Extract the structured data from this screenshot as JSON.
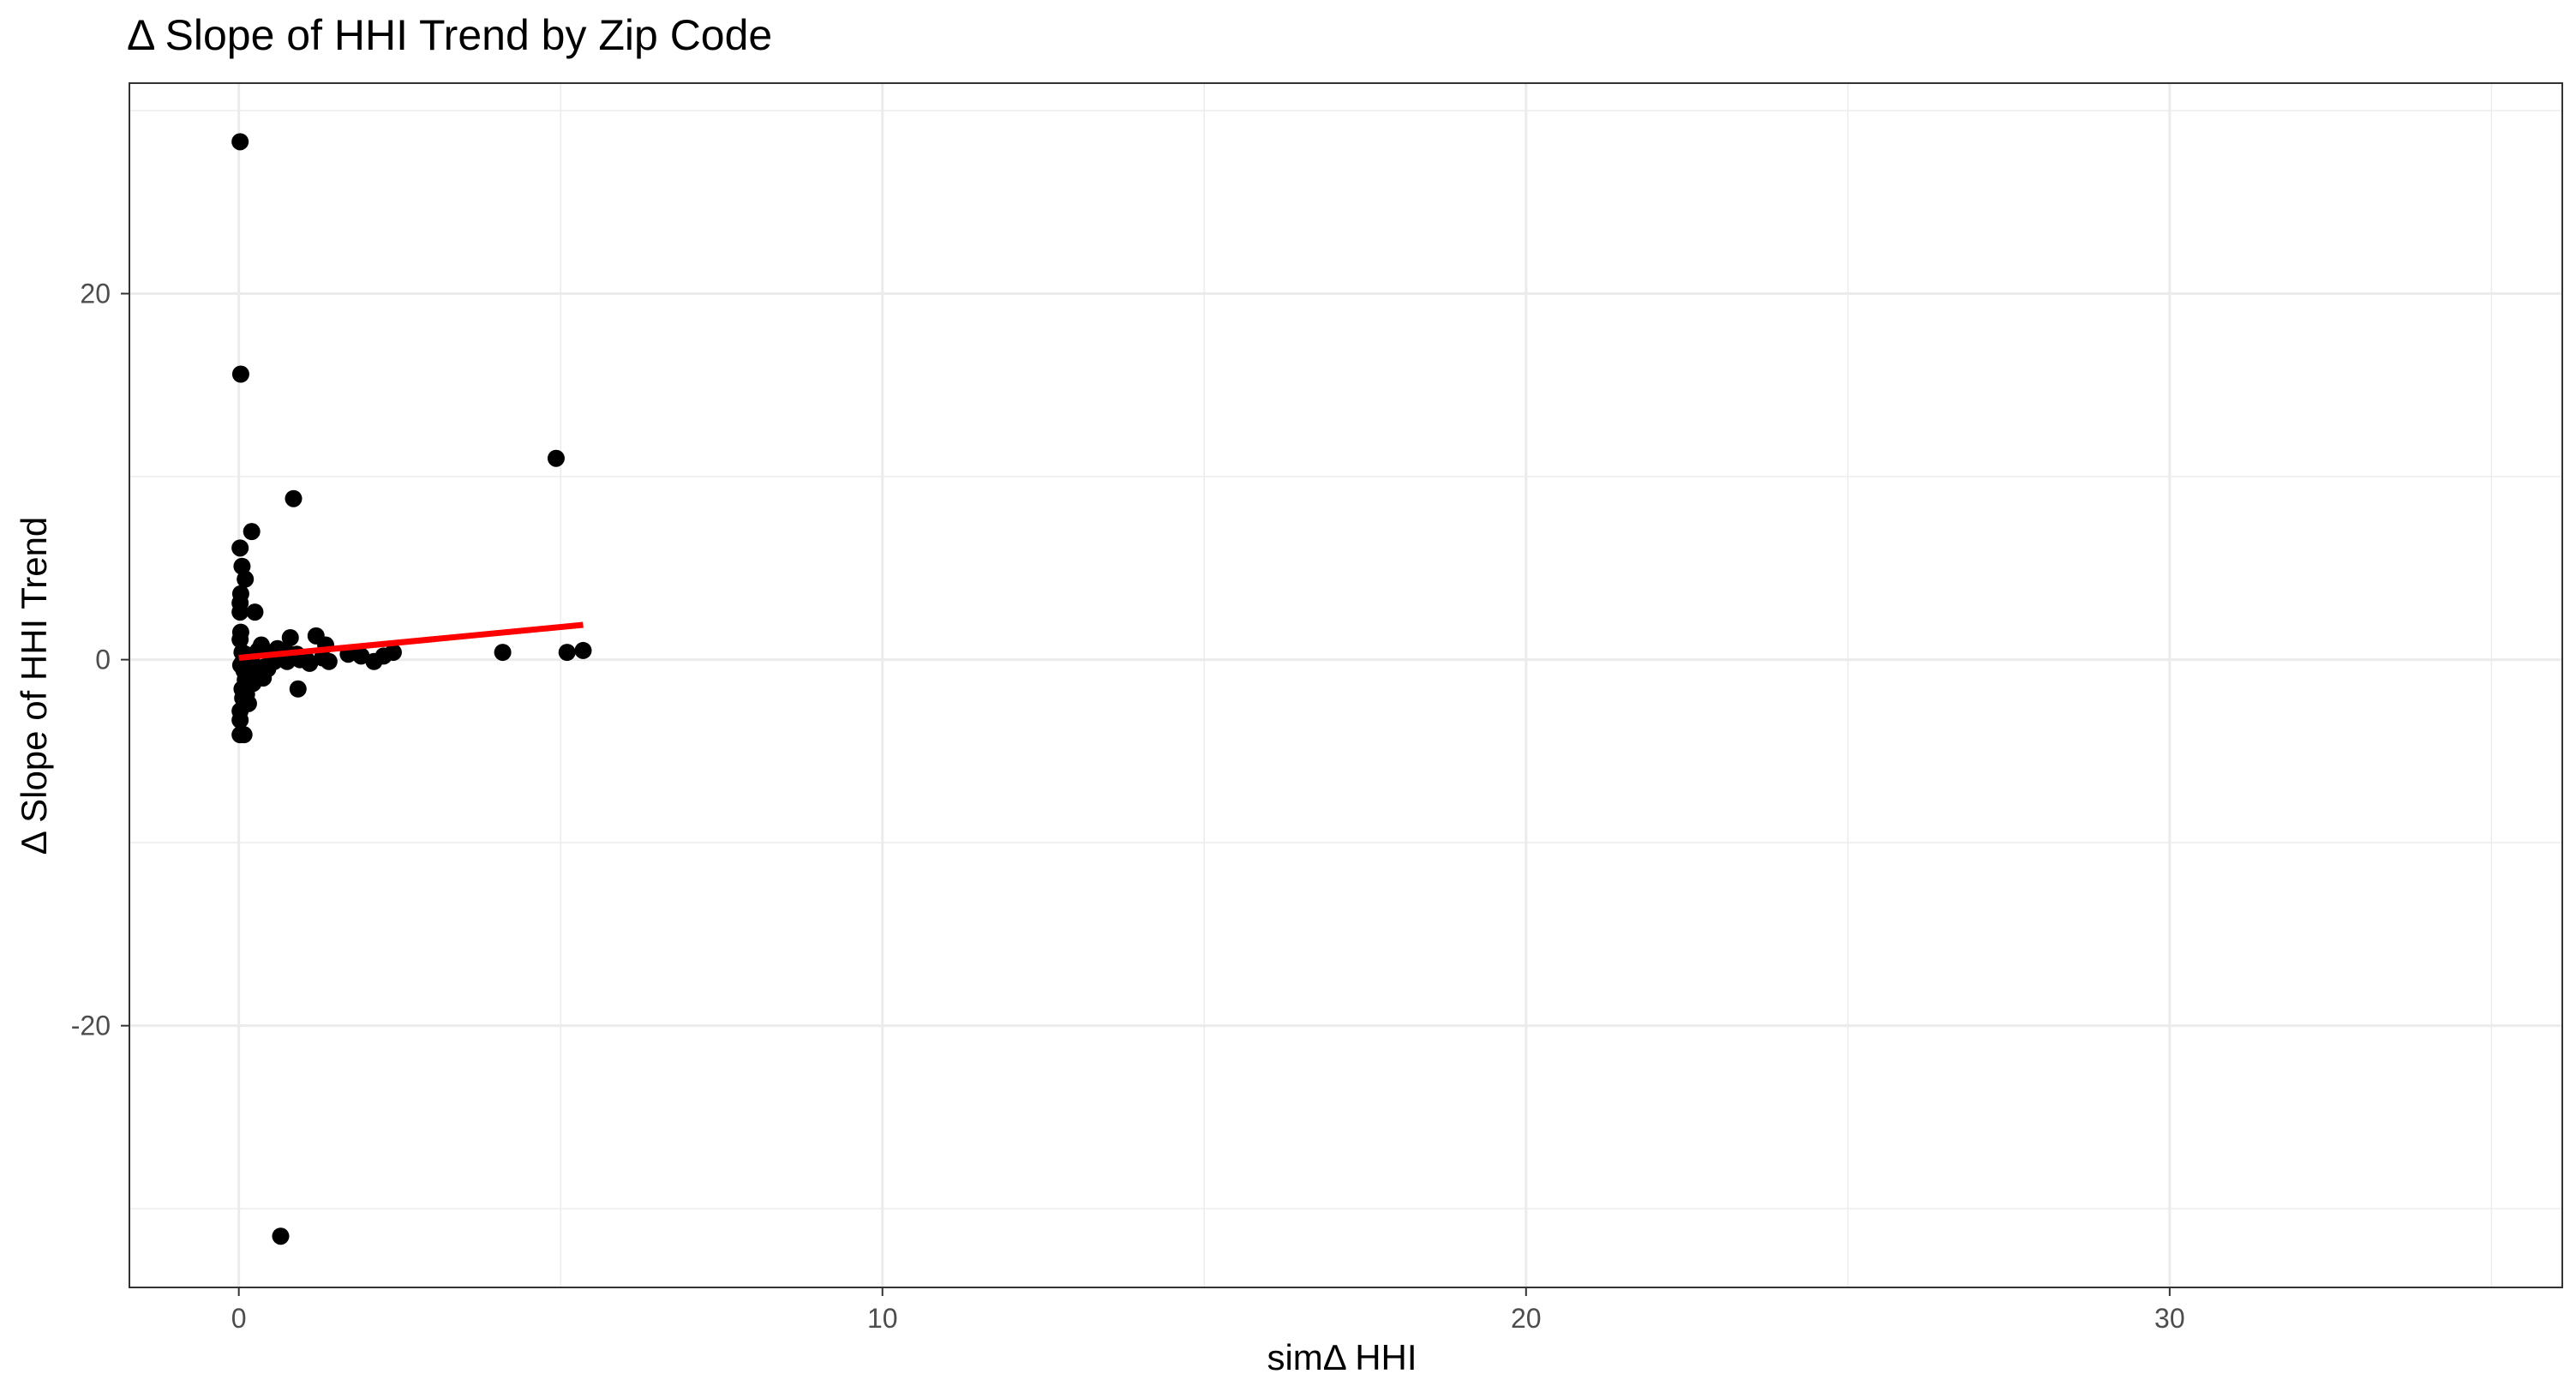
{
  "chart_data": {
    "type": "scatter",
    "title": "Δ Slope of HHI Trend by Zip Code",
    "xlabel": "simΔ HHI",
    "ylabel": "Δ Slope of HHI Trend",
    "xlim": [
      -1.7,
      36.1
    ],
    "ylim": [
      -34.3,
      31.5
    ],
    "x_ticks": [
      0,
      10,
      20,
      30
    ],
    "x_tick_labels": [
      "0",
      "10",
      "20",
      "30"
    ],
    "y_ticks": [
      -20,
      0,
      20
    ],
    "y_tick_labels": [
      "-20",
      "0",
      "20"
    ],
    "grid": true,
    "legend": "none",
    "series": [
      {
        "kind": "points",
        "color": "#000000",
        "x": [
          0.02,
          0.03,
          4.93,
          0.85,
          0.2,
          0.02,
          0.05,
          0.1,
          0.03,
          0.02,
          0.02,
          0.25,
          0.03,
          0.02,
          0.35,
          0.72,
          0.8,
          1.2,
          1.35,
          0.05,
          0.1,
          0.15,
          0.3,
          0.5,
          0.6,
          0.9,
          1.05,
          1.4,
          1.7,
          1.9,
          2.1,
          2.25,
          2.4,
          4.1,
          5.1,
          5.35,
          0.05,
          0.12,
          0.2,
          0.4,
          0.55,
          0.65,
          0.75,
          0.95,
          1.1,
          1.3,
          0.08,
          0.18,
          0.28,
          0.45,
          0.1,
          0.22,
          0.38,
          0.05,
          0.12,
          0.06,
          0.15,
          0.92,
          0.02,
          0.02,
          0.02,
          0.08,
          0.03,
          0.65
        ],
        "y": [
          28.3,
          15.6,
          11.0,
          8.8,
          7.0,
          6.1,
          5.1,
          4.4,
          3.6,
          3.1,
          2.6,
          2.6,
          1.5,
          1.1,
          0.8,
          0.5,
          1.2,
          1.3,
          0.8,
          0.4,
          0.3,
          0.2,
          0.5,
          0.3,
          0.6,
          0.3,
          0.0,
          -0.1,
          0.3,
          0.2,
          -0.1,
          0.2,
          0.4,
          0.4,
          0.4,
          0.5,
          -0.2,
          -0.3,
          -0.1,
          -0.4,
          -0.1,
          0.1,
          -0.1,
          0.0,
          -0.2,
          0.1,
          -0.6,
          -0.9,
          -0.7,
          -0.5,
          -1.1,
          -1.3,
          -1.0,
          -1.6,
          -1.9,
          -2.1,
          -2.4,
          -1.6,
          -2.8,
          -3.3,
          -4.1,
          -4.1,
          -0.3,
          -31.5
        ]
      },
      {
        "kind": "trend-line",
        "color": "#ff0000",
        "x": [
          0.0,
          5.35
        ],
        "y": [
          0.1,
          1.9
        ]
      }
    ]
  }
}
